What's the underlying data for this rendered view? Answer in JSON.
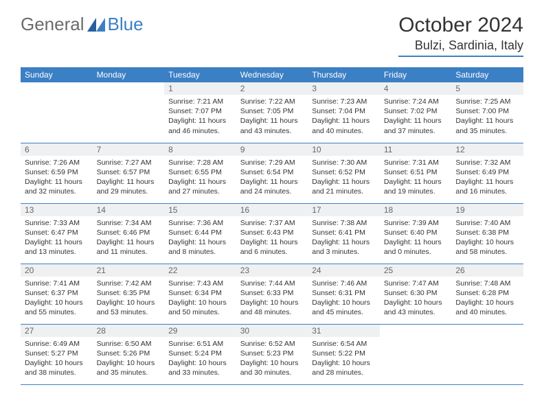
{
  "logo": {
    "text1": "General",
    "text2": "Blue"
  },
  "title": "October 2024",
  "location": "Bulzi, Sardinia, Italy",
  "colors": {
    "accent": "#3b7fc4",
    "header_bg": "#3b7fc4",
    "daynum_bg": "#eef0f2",
    "text": "#333333"
  },
  "weekdays": [
    "Sunday",
    "Monday",
    "Tuesday",
    "Wednesday",
    "Thursday",
    "Friday",
    "Saturday"
  ],
  "days": [
    null,
    null,
    {
      "n": "1",
      "sr": "7:21 AM",
      "ss": "7:07 PM",
      "dl": "11 hours and 46 minutes."
    },
    {
      "n": "2",
      "sr": "7:22 AM",
      "ss": "7:05 PM",
      "dl": "11 hours and 43 minutes."
    },
    {
      "n": "3",
      "sr": "7:23 AM",
      "ss": "7:04 PM",
      "dl": "11 hours and 40 minutes."
    },
    {
      "n": "4",
      "sr": "7:24 AM",
      "ss": "7:02 PM",
      "dl": "11 hours and 37 minutes."
    },
    {
      "n": "5",
      "sr": "7:25 AM",
      "ss": "7:00 PM",
      "dl": "11 hours and 35 minutes."
    },
    {
      "n": "6",
      "sr": "7:26 AM",
      "ss": "6:59 PM",
      "dl": "11 hours and 32 minutes."
    },
    {
      "n": "7",
      "sr": "7:27 AM",
      "ss": "6:57 PM",
      "dl": "11 hours and 29 minutes."
    },
    {
      "n": "8",
      "sr": "7:28 AM",
      "ss": "6:55 PM",
      "dl": "11 hours and 27 minutes."
    },
    {
      "n": "9",
      "sr": "7:29 AM",
      "ss": "6:54 PM",
      "dl": "11 hours and 24 minutes."
    },
    {
      "n": "10",
      "sr": "7:30 AM",
      "ss": "6:52 PM",
      "dl": "11 hours and 21 minutes."
    },
    {
      "n": "11",
      "sr": "7:31 AM",
      "ss": "6:51 PM",
      "dl": "11 hours and 19 minutes."
    },
    {
      "n": "12",
      "sr": "7:32 AM",
      "ss": "6:49 PM",
      "dl": "11 hours and 16 minutes."
    },
    {
      "n": "13",
      "sr": "7:33 AM",
      "ss": "6:47 PM",
      "dl": "11 hours and 13 minutes."
    },
    {
      "n": "14",
      "sr": "7:34 AM",
      "ss": "6:46 PM",
      "dl": "11 hours and 11 minutes."
    },
    {
      "n": "15",
      "sr": "7:36 AM",
      "ss": "6:44 PM",
      "dl": "11 hours and 8 minutes."
    },
    {
      "n": "16",
      "sr": "7:37 AM",
      "ss": "6:43 PM",
      "dl": "11 hours and 6 minutes."
    },
    {
      "n": "17",
      "sr": "7:38 AM",
      "ss": "6:41 PM",
      "dl": "11 hours and 3 minutes."
    },
    {
      "n": "18",
      "sr": "7:39 AM",
      "ss": "6:40 PM",
      "dl": "11 hours and 0 minutes."
    },
    {
      "n": "19",
      "sr": "7:40 AM",
      "ss": "6:38 PM",
      "dl": "10 hours and 58 minutes."
    },
    {
      "n": "20",
      "sr": "7:41 AM",
      "ss": "6:37 PM",
      "dl": "10 hours and 55 minutes."
    },
    {
      "n": "21",
      "sr": "7:42 AM",
      "ss": "6:35 PM",
      "dl": "10 hours and 53 minutes."
    },
    {
      "n": "22",
      "sr": "7:43 AM",
      "ss": "6:34 PM",
      "dl": "10 hours and 50 minutes."
    },
    {
      "n": "23",
      "sr": "7:44 AM",
      "ss": "6:33 PM",
      "dl": "10 hours and 48 minutes."
    },
    {
      "n": "24",
      "sr": "7:46 AM",
      "ss": "6:31 PM",
      "dl": "10 hours and 45 minutes."
    },
    {
      "n": "25",
      "sr": "7:47 AM",
      "ss": "6:30 PM",
      "dl": "10 hours and 43 minutes."
    },
    {
      "n": "26",
      "sr": "7:48 AM",
      "ss": "6:28 PM",
      "dl": "10 hours and 40 minutes."
    },
    {
      "n": "27",
      "sr": "6:49 AM",
      "ss": "5:27 PM",
      "dl": "10 hours and 38 minutes."
    },
    {
      "n": "28",
      "sr": "6:50 AM",
      "ss": "5:26 PM",
      "dl": "10 hours and 35 minutes."
    },
    {
      "n": "29",
      "sr": "6:51 AM",
      "ss": "5:24 PM",
      "dl": "10 hours and 33 minutes."
    },
    {
      "n": "30",
      "sr": "6:52 AM",
      "ss": "5:23 PM",
      "dl": "10 hours and 30 minutes."
    },
    {
      "n": "31",
      "sr": "6:54 AM",
      "ss": "5:22 PM",
      "dl": "10 hours and 28 minutes."
    },
    null,
    null
  ],
  "labels": {
    "sunrise": "Sunrise:",
    "sunset": "Sunset:",
    "daylight": "Daylight:"
  }
}
